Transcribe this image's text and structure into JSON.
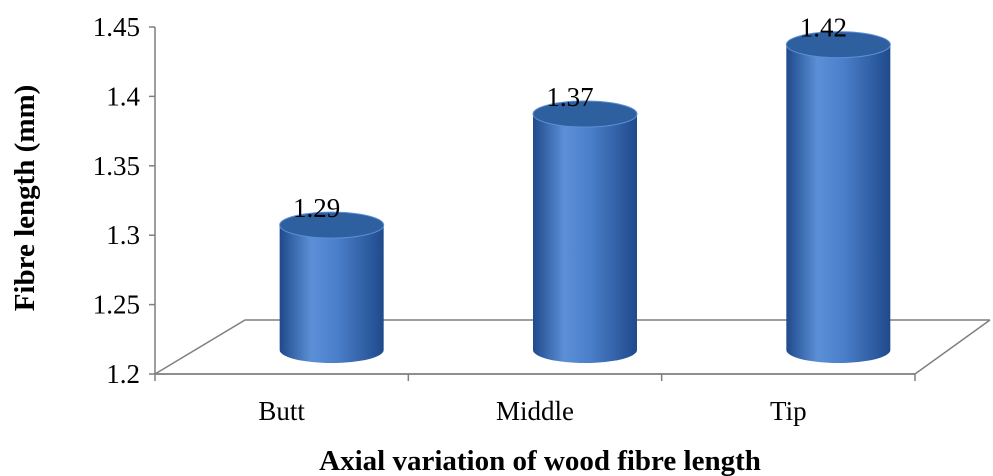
{
  "chart_data": {
    "type": "bar",
    "style": "3d-cylinder",
    "categories": [
      "Butt",
      "Middle",
      "Tip"
    ],
    "values": [
      1.29,
      1.37,
      1.42
    ],
    "data_labels": [
      "1.29",
      "1.37",
      "1.42"
    ],
    "y_ticks": [
      "1.2",
      "1.25",
      "1.3",
      "1.35",
      "1.4",
      "1.45"
    ],
    "ylim": [
      1.2,
      1.45
    ],
    "title": "",
    "xlabel": "Axial variation of wood fibre length",
    "ylabel": "Fibre length (mm)",
    "grid": false,
    "legend": "none",
    "colors": {
      "bar_light": "#5b8fd6",
      "bar_mid": "#3a6fc0",
      "bar_dark": "#1f4a8c",
      "top_face": "#2e5f9e",
      "axis": "#7f7f7f"
    }
  }
}
